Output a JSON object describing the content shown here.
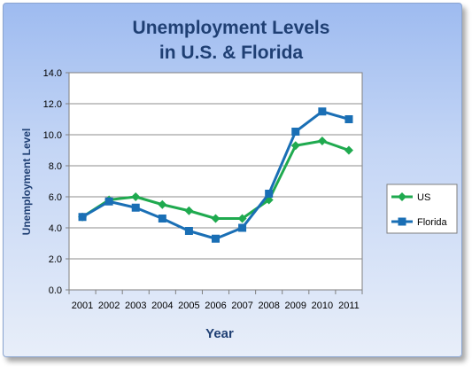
{
  "chart_data": {
    "type": "line",
    "title_line1": "Unemployment Levels",
    "title_line2": "in U.S. & Florida",
    "xlabel": "Year",
    "ylabel": "Unemployment Level",
    "categories": [
      "2001",
      "2002",
      "2003",
      "2004",
      "2005",
      "2006",
      "2007",
      "2008",
      "2009",
      "2010",
      "2011"
    ],
    "ylim": [
      0,
      14
    ],
    "ytick_labels": [
      "0.0",
      "2.0",
      "4.0",
      "6.0",
      "8.0",
      "10.0",
      "12.0",
      "14.0"
    ],
    "grid": "horizontal",
    "legend_position": "right",
    "series": [
      {
        "name": "US",
        "color": "#1faa4f",
        "marker": "diamond",
        "values": [
          4.7,
          5.8,
          6.0,
          5.5,
          5.1,
          4.6,
          4.6,
          5.8,
          9.3,
          9.6,
          9.0
        ]
      },
      {
        "name": "Florida",
        "color": "#1a6fb5",
        "marker": "square",
        "values": [
          4.7,
          5.7,
          5.3,
          4.6,
          3.8,
          3.3,
          4.0,
          6.2,
          10.2,
          11.5,
          11.0
        ]
      }
    ]
  }
}
